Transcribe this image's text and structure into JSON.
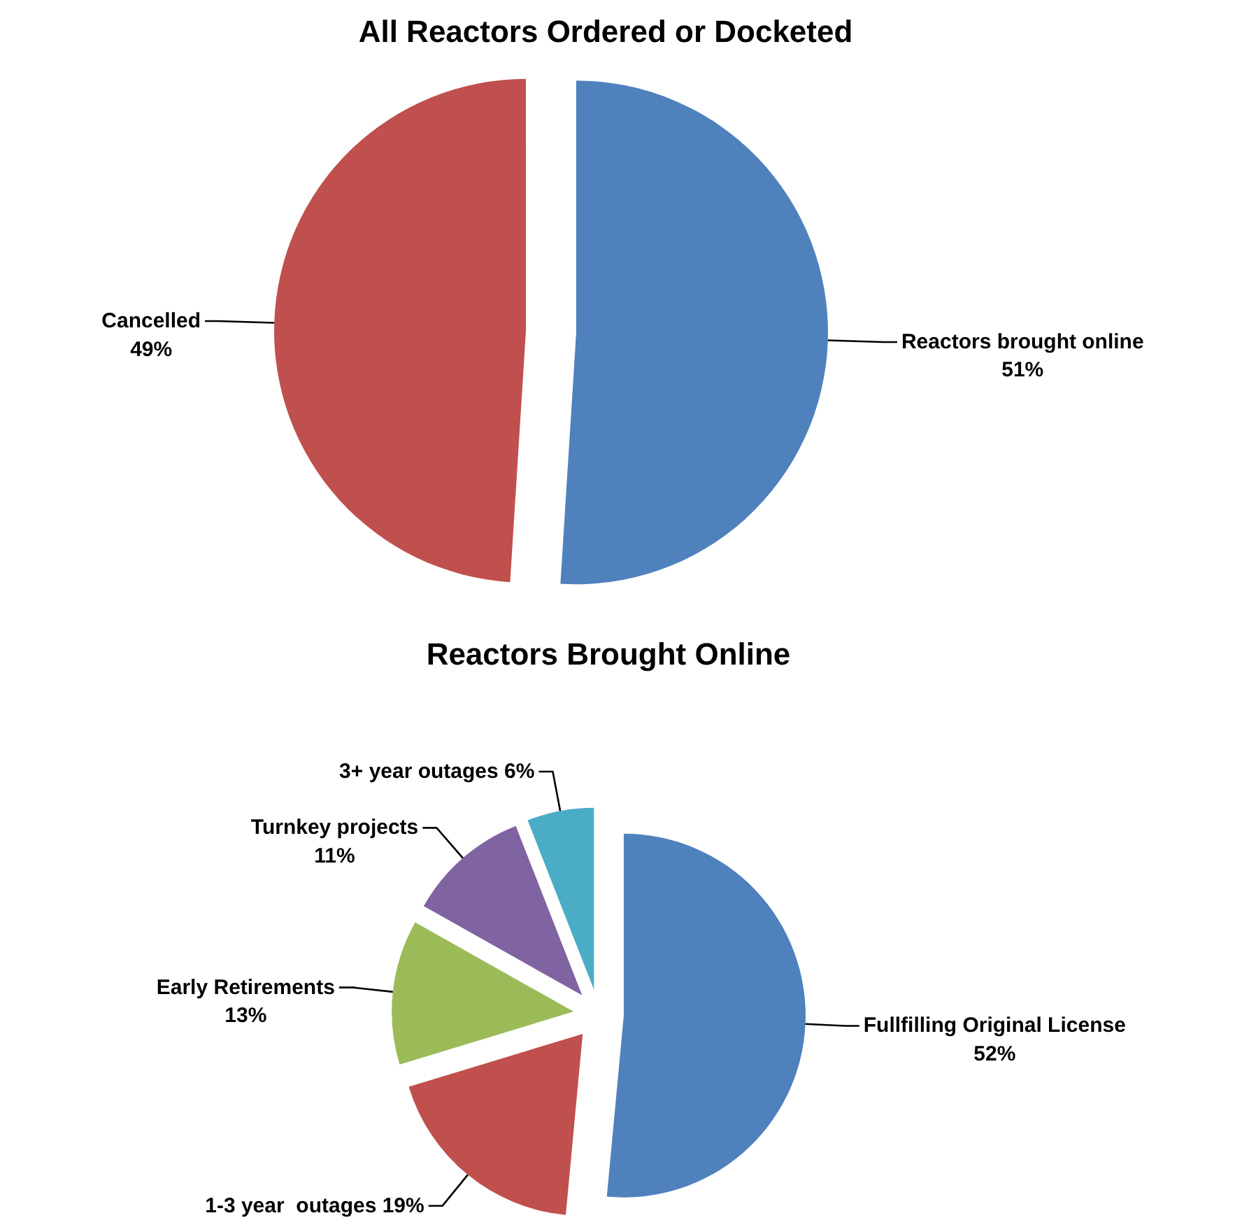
{
  "chart_data": [
    {
      "type": "pie",
      "title": "All Reactors Ordered or Docketed",
      "categories": [
        "Reactors brought online",
        "Cancelled"
      ],
      "values": [
        51,
        49
      ],
      "colors": [
        "#4f81bd",
        "#c0504d"
      ],
      "value_labels": [
        "51%",
        "49%"
      ]
    },
    {
      "type": "pie",
      "title": "Reactors Brought Online",
      "categories": [
        "Fullfilling Original License",
        "1-3 year  outages",
        "Early Retirements",
        "Turnkey projects",
        "3+ year outages"
      ],
      "values": [
        52,
        19,
        13,
        11,
        6
      ],
      "colors": [
        "#4f81bd",
        "#c0504d",
        "#9bbb59",
        "#8064a2",
        "#4bacc6"
      ],
      "value_labels": [
        "52%",
        "19%",
        "13%",
        "11%",
        "6%"
      ]
    }
  ]
}
